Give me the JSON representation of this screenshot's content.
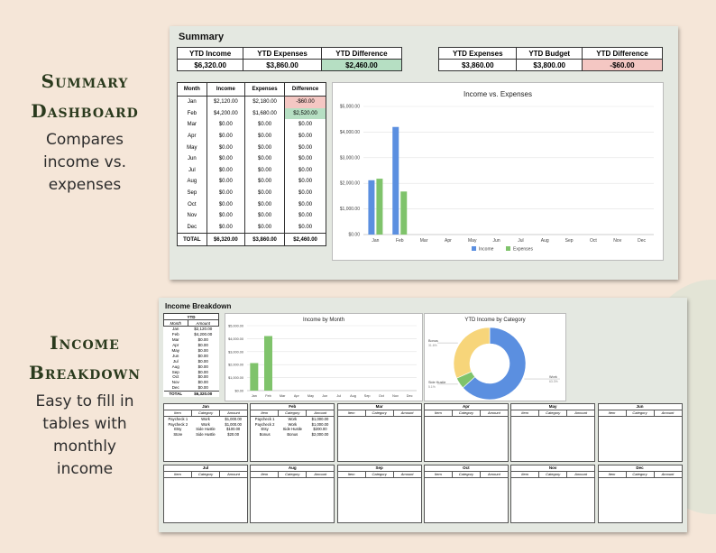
{
  "left_panel": [
    {
      "heading_lines": [
        "Summary",
        "Dashboard"
      ],
      "desc_lines": [
        "Compares",
        "income vs.",
        "expenses"
      ]
    },
    {
      "heading_lines": [
        "Income",
        "Breakdown"
      ],
      "desc_lines": [
        "Easy to fill in",
        "tables with",
        "monthly",
        "income"
      ]
    }
  ],
  "summary": {
    "title": "Summary",
    "totals_left": {
      "headers": [
        "YTD Income",
        "YTD Expenses",
        "YTD Difference"
      ],
      "values": [
        "$6,320.00",
        "$3,860.00",
        "$2,460.00"
      ]
    },
    "totals_right": {
      "headers": [
        "YTD Expenses",
        "YTD Budget",
        "YTD Difference"
      ],
      "values": [
        "$3,860.00",
        "$3,800.00",
        "-$60.00"
      ]
    },
    "monthly": {
      "headers": [
        "Month",
        "Income",
        "Expenses",
        "Difference"
      ],
      "rows": [
        [
          "Jan",
          "$2,120.00",
          "$2,180.00",
          "-$60.00"
        ],
        [
          "Feb",
          "$4,200.00",
          "$1,680.00",
          "$2,520.00"
        ],
        [
          "Mar",
          "$0.00",
          "$0.00",
          "$0.00"
        ],
        [
          "Apr",
          "$0.00",
          "$0.00",
          "$0.00"
        ],
        [
          "May",
          "$0.00",
          "$0.00",
          "$0.00"
        ],
        [
          "Jun",
          "$0.00",
          "$0.00",
          "$0.00"
        ],
        [
          "Jul",
          "$0.00",
          "$0.00",
          "$0.00"
        ],
        [
          "Aug",
          "$0.00",
          "$0.00",
          "$0.00"
        ],
        [
          "Sep",
          "$0.00",
          "$0.00",
          "$0.00"
        ],
        [
          "Oct",
          "$0.00",
          "$0.00",
          "$0.00"
        ],
        [
          "Nov",
          "$0.00",
          "$0.00",
          "$0.00"
        ],
        [
          "Dec",
          "$0.00",
          "$0.00",
          "$0.00"
        ]
      ],
      "total": [
        "TOTAL",
        "$6,320.00",
        "$3,860.00",
        "$2,460.00"
      ]
    },
    "colors": {
      "positive": "#b6dfc3",
      "negative": "#f4c7c3"
    }
  },
  "income_breakdown": {
    "title": "Income Breakdown",
    "ytd_table": {
      "title": "YTD",
      "headers": [
        "Month",
        "Amount"
      ],
      "rows": [
        [
          "Jan",
          "$2,120.00"
        ],
        [
          "Feb",
          "$4,200.00"
        ],
        [
          "Mar",
          "$0.00"
        ],
        [
          "Apr",
          "$0.00"
        ],
        [
          "May",
          "$0.00"
        ],
        [
          "Jun",
          "$0.00"
        ],
        [
          "Jul",
          "$0.00"
        ],
        [
          "Aug",
          "$0.00"
        ],
        [
          "Sep",
          "$0.00"
        ],
        [
          "Oct",
          "$0.00"
        ],
        [
          "Nov",
          "$0.00"
        ],
        [
          "Dec",
          "$0.00"
        ]
      ],
      "total": [
        "TOTAL",
        "$6,320.00"
      ]
    },
    "monthly_tables": [
      {
        "month": "Jan",
        "rows": [
          [
            "Paycheck 1",
            "Work",
            "$1,000.00"
          ],
          [
            "Paycheck 2",
            "Work",
            "$1,000.00"
          ],
          [
            "Etsy",
            "Side Hustle",
            "$100.00"
          ],
          [
            "Store",
            "Side Hustle",
            "$20.00"
          ]
        ]
      },
      {
        "month": "Feb",
        "rows": [
          [
            "Paycheck 1",
            "Work",
            "$1,000.00"
          ],
          [
            "Paycheck 2",
            "Work",
            "$1,000.00"
          ],
          [
            "Etsy",
            "Side Hustle",
            "$200.00"
          ],
          [
            "Bonus",
            "Bonus",
            "$2,000.00"
          ]
        ]
      },
      {
        "month": "Mar",
        "rows": []
      },
      {
        "month": "Apr",
        "rows": []
      },
      {
        "month": "May",
        "rows": []
      },
      {
        "month": "Jun",
        "rows": []
      },
      {
        "month": "Jul",
        "rows": []
      },
      {
        "month": "Aug",
        "rows": []
      },
      {
        "month": "Sep",
        "rows": []
      },
      {
        "month": "Oct",
        "rows": []
      },
      {
        "month": "Nov",
        "rows": []
      },
      {
        "month": "Dec",
        "rows": []
      }
    ],
    "table_headers": [
      "Item",
      "Category",
      "Amount"
    ]
  },
  "chart_data": [
    {
      "type": "bar",
      "title": "Income vs. Expenses",
      "categories": [
        "Jan",
        "Feb",
        "Mar",
        "Apr",
        "May",
        "Jun",
        "Jul",
        "Aug",
        "Sep",
        "Oct",
        "Nov",
        "Dec"
      ],
      "series": [
        {
          "name": "Income",
          "color": "#5b8fe0",
          "values": [
            2120,
            4200,
            0,
            0,
            0,
            0,
            0,
            0,
            0,
            0,
            0,
            0
          ]
        },
        {
          "name": "Expenses",
          "color": "#7fc36b",
          "values": [
            2180,
            1680,
            0,
            0,
            0,
            0,
            0,
            0,
            0,
            0,
            0,
            0
          ]
        }
      ],
      "yticks": [
        "$0.00",
        "$1,000.00",
        "$2,000.00",
        "$3,000.00",
        "$4,000.00",
        "$5,000.00"
      ],
      "ylim": [
        0,
        5000
      ],
      "legend": "bottom",
      "grid": true
    },
    {
      "type": "bar",
      "title": "Income by Month",
      "categories": [
        "Jan",
        "Feb",
        "Mar",
        "Apr",
        "May",
        "Jun",
        "Jul",
        "Aug",
        "Sep",
        "Oct",
        "Nov",
        "Dec"
      ],
      "series": [
        {
          "color": "#7fc36b",
          "values": [
            2120,
            4200,
            0,
            0,
            0,
            0,
            0,
            0,
            0,
            0,
            0,
            0
          ]
        }
      ],
      "yticks": [
        "$0.00",
        "$1,000.00",
        "$2,000.00",
        "$3,000.00",
        "$4,000.00",
        "$5,000.00"
      ],
      "ylim": [
        0,
        5000
      ],
      "grid": true
    },
    {
      "type": "pie",
      "title": "YTD Income by Category",
      "donut": true,
      "slices": [
        {
          "name": "Work",
          "value": 4000,
          "pct": "63.3%",
          "color": "#5b8fe0"
        },
        {
          "name": "Side Hustle",
          "value": 320,
          "pct": "5.1%",
          "color": "#7fc36b"
        },
        {
          "name": "Bonus",
          "value": 2000,
          "pct": "31.6%",
          "color": "#f7d57a"
        }
      ]
    }
  ]
}
